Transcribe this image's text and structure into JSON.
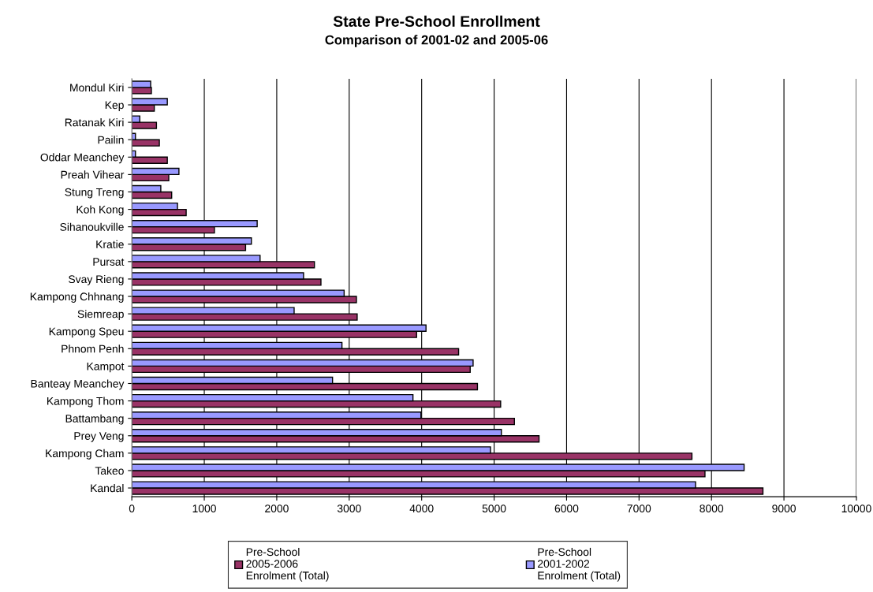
{
  "chart_data": {
    "type": "bar",
    "orientation": "horizontal",
    "title": "State Pre-School Enrollment",
    "subtitle": "Comparison of 2001-02 and 2005-06",
    "categories": [
      "Mondul Kiri",
      "Kep",
      "Ratanak Kiri",
      "Pailin",
      "Oddar Meanchey",
      "Preah Vihear",
      "Stung Treng",
      "Koh Kong",
      "Sihanoukville",
      "Kratie",
      "Pursat",
      "Svay Rieng",
      "Kampong Chhnang",
      "Siemreap",
      "Kampong Speu",
      "Phnom Penh",
      "Kampot",
      "Banteay Meanchey",
      "Kampong Thom",
      "Battambang",
      "Prey Veng",
      "Kampong Cham",
      "Takeo",
      "Kandal"
    ],
    "series": [
      {
        "name": "Pre-School\n2005-2006\nEnrolment (Total)",
        "color": "#993366",
        "values": [
          270,
          310,
          340,
          380,
          490,
          510,
          550,
          750,
          1140,
          1570,
          2520,
          2610,
          3100,
          3110,
          3930,
          4510,
          4670,
          4770,
          5090,
          5280,
          5620,
          7730,
          7910,
          8710
        ]
      },
      {
        "name": "Pre-School\n2001-2002\nEnrolment (Total)",
        "color": "#9999ff",
        "values": [
          260,
          490,
          110,
          50,
          50,
          650,
          400,
          630,
          1730,
          1650,
          1770,
          2370,
          2930,
          2240,
          4060,
          2900,
          4710,
          2770,
          3880,
          3990,
          5100,
          4950,
          8450,
          7780
        ]
      }
    ],
    "xlim": [
      0,
      10000
    ],
    "xticks": [
      0,
      1000,
      2000,
      3000,
      4000,
      5000,
      6000,
      7000,
      8000,
      9000,
      10000
    ],
    "grid": "x",
    "legend": "bottom"
  }
}
